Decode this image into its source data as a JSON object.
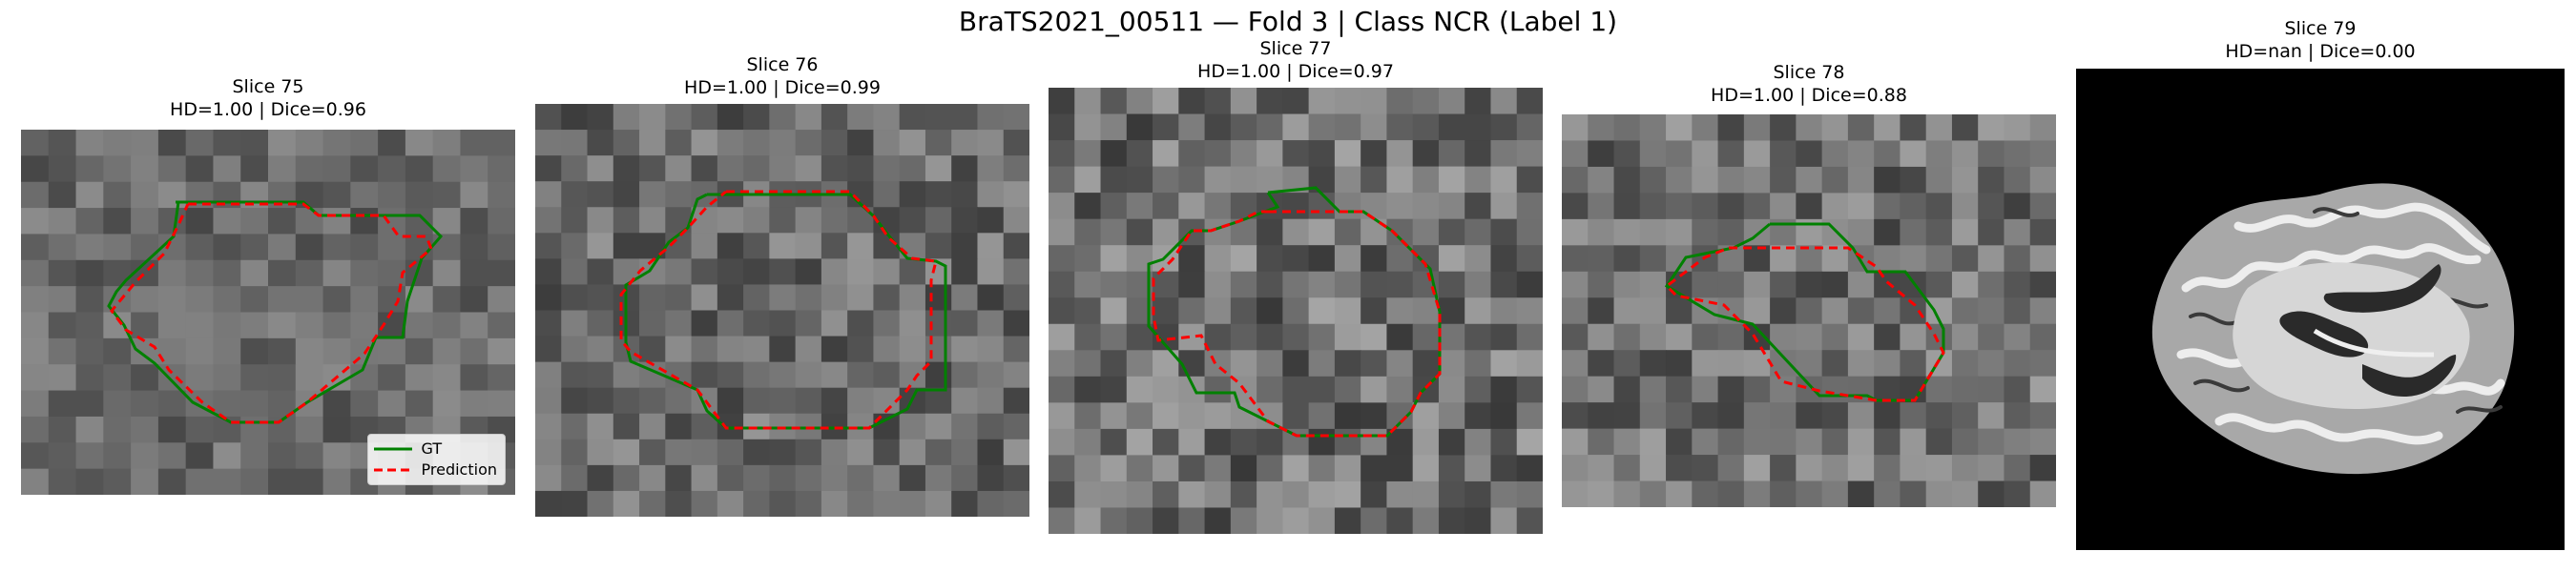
{
  "figure": {
    "title": "BraTS2021_00511 — Fold 3 | Class NCR (Label 1)"
  },
  "colors": {
    "gt": "#008000",
    "prediction": "#ff0000"
  },
  "legend": {
    "gt_label": "GT",
    "pred_label": "Prediction"
  },
  "panels": [
    {
      "title": "Slice 75",
      "metrics": "HD=1.00 | Dice=0.96"
    },
    {
      "title": "Slice 76",
      "metrics": "HD=1.00 | Dice=0.99"
    },
    {
      "title": "Slice 77",
      "metrics": "HD=1.00 | Dice=0.97"
    },
    {
      "title": "Slice 78",
      "metrics": "HD=1.00 | Dice=0.88"
    },
    {
      "title": "Slice 79",
      "metrics": "HD=nan | Dice=0.00"
    }
  ]
}
